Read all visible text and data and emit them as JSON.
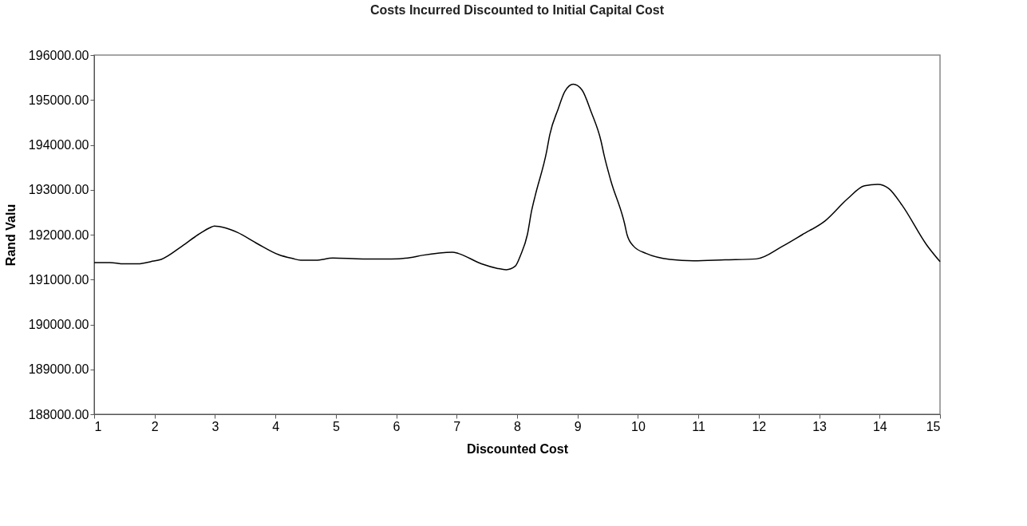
{
  "chart_data": {
    "type": "line",
    "title": "Costs Incurred Discounted to Initial Capital Cost",
    "xlabel": "Discounted Cost",
    "ylabel": "Rand Valu",
    "x": [
      1.0,
      1.26,
      1.49,
      1.73,
      1.94,
      2.11,
      2.46,
      2.72,
      2.91,
      2.99,
      3.17,
      3.37,
      3.7,
      4.06,
      4.28,
      4.42,
      4.67,
      4.95,
      5.45,
      5.92,
      6.23,
      6.43,
      6.93,
      7.03,
      7.41,
      7.67,
      7.82,
      7.97,
      8.06,
      8.17,
      8.24,
      8.3,
      8.49,
      8.54,
      8.68,
      8.79,
      8.93,
      9.07,
      9.23,
      9.39,
      9.44,
      9.55,
      9.78,
      9.82,
      9.93,
      10.14,
      10.53,
      10.92,
      11.44,
      11.96,
      12.39,
      12.72,
      13.1,
      13.47,
      13.75,
      13.97,
      14.15,
      14.37,
      14.78,
      15.0
    ],
    "series": [
      {
        "color": "#000000",
        "values": [
          191380,
          191380,
          191350,
          191350,
          191400,
          191450,
          191750,
          192000,
          192150,
          192190,
          192150,
          192050,
          191800,
          191550,
          191470,
          191430,
          191430,
          191480,
          191460,
          191460,
          191490,
          191540,
          191610,
          191580,
          191350,
          191250,
          191220,
          191300,
          191550,
          192000,
          192530,
          192870,
          193860,
          194220,
          194800,
          195190,
          195350,
          195230,
          194720,
          194080,
          193770,
          193210,
          192240,
          192000,
          191740,
          191580,
          191450,
          191420,
          191440,
          191460,
          191740,
          192000,
          192310,
          192800,
          193090,
          193120,
          193030,
          192660,
          191770,
          191400
        ]
      }
    ],
    "xlim": [
      1,
      15
    ],
    "xticks": [
      1,
      2,
      3,
      4,
      5,
      6,
      7,
      8,
      9,
      10,
      11,
      12,
      13,
      14,
      15
    ],
    "ylim": [
      188000,
      196000
    ],
    "yticks": [
      {
        "value": 188000,
        "label": "188000.00"
      },
      {
        "value": 189000,
        "label": "189000.00"
      },
      {
        "value": 190000,
        "label": "190000.00"
      },
      {
        "value": 191000,
        "label": "191000.00"
      },
      {
        "value": 192000,
        "label": "192000.00"
      },
      {
        "value": 193000,
        "label": "193000.00"
      },
      {
        "value": 194000,
        "label": "194000.00"
      },
      {
        "value": 195000,
        "label": "195000.00"
      },
      {
        "value": 196000,
        "label": "196000.00"
      }
    ],
    "grid": false,
    "marker": "none",
    "line_style": "solid"
  }
}
